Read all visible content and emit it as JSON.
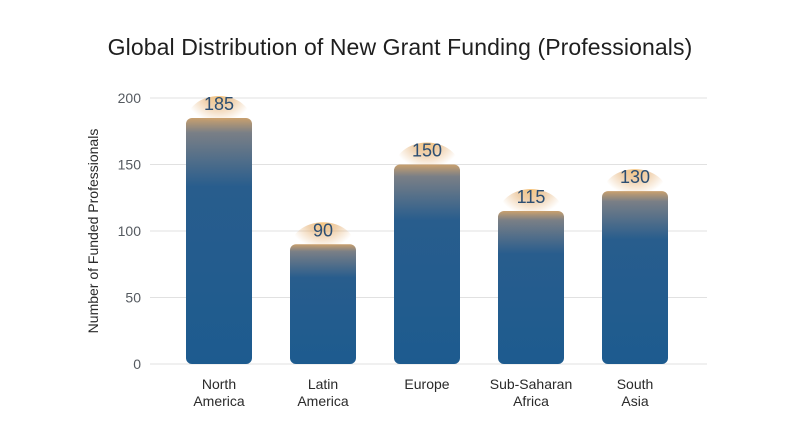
{
  "chart_data": {
    "type": "bar",
    "title": "Global Distribution of New Grant Funding (Professionals)",
    "xlabel": "",
    "ylabel": "Number of Funded Professionals",
    "categories": [
      [
        "North",
        "America"
      ],
      [
        "Latin",
        "America"
      ],
      [
        "Europe"
      ],
      [
        "Sub-Saharan",
        "Africa"
      ],
      [
        "South",
        "Asia"
      ]
    ],
    "values": [
      185,
      90,
      150,
      115,
      130
    ],
    "ylim": [
      0,
      200
    ],
    "yticks": [
      0,
      50,
      100,
      150,
      200
    ],
    "grid": true,
    "legend": "none",
    "colors": {
      "bar": "#1e5a8e",
      "bar_glow": "#f0b46a",
      "value_label": "#2c4e72",
      "grid": "#e1e1e1"
    }
  }
}
